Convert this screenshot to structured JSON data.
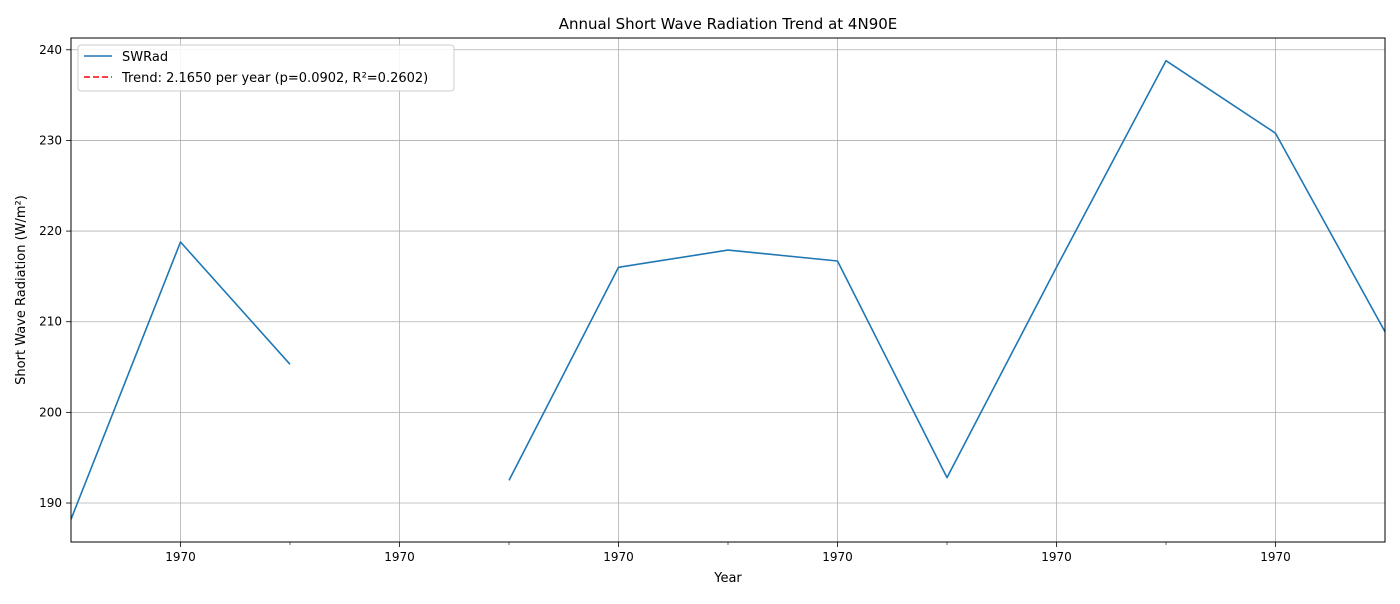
{
  "chart_data": {
    "type": "line",
    "title": "Annual Short Wave Radiation Trend at 4N90E",
    "xlabel": "Year",
    "ylabel": "Short Wave Radiation (W/m²)",
    "xlim": [
      0,
      12
    ],
    "ylim": [
      185.7,
      241.3
    ],
    "x_ticks_labeled": [
      1,
      3,
      5,
      7,
      9,
      11
    ],
    "x_ticks_minor": [
      2,
      4,
      6,
      8,
      10
    ],
    "x_tick_label": "1970",
    "y_ticks": [
      190,
      200,
      210,
      220,
      230,
      240
    ],
    "grid": true,
    "legend_position": "top-left",
    "series": [
      {
        "name": "SWRad",
        "color": "#1f77b4",
        "style": "solid",
        "x": [
          0,
          1,
          2,
          3,
          4,
          5,
          6,
          7,
          8,
          9,
          10,
          11,
          12
        ],
        "values": [
          188.2,
          218.8,
          205.3,
          null,
          192.5,
          216.0,
          217.9,
          216.7,
          192.8,
          216.0,
          238.8,
          230.8,
          208.9
        ]
      },
      {
        "name": "Trend: 2.1650 per year (p=0.0902, R²=0.2602)",
        "color": "#ff0000",
        "style": "dashed",
        "x": [],
        "values": []
      }
    ]
  }
}
